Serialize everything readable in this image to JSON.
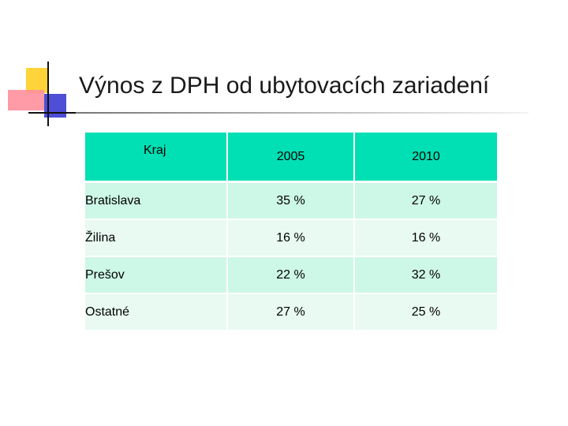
{
  "slide": {
    "title": "Výnos z DPH od ubytovacích zariadení"
  },
  "table": {
    "headers": [
      "Kraj",
      "2005",
      "2010"
    ],
    "rows": [
      {
        "kraj": "Bratislava",
        "y2005": "35 %",
        "y2010": "27 %"
      },
      {
        "kraj": "Žilina",
        "y2005": "16 %",
        "y2010": "16 %"
      },
      {
        "kraj": "Prešov",
        "y2005": "22 %",
        "y2010": "32 %"
      },
      {
        "kraj": "Ostatné",
        "y2005": "27 %",
        "y2010": "25 %"
      }
    ]
  },
  "colors": {
    "header_bg": "#00e0b4",
    "row_odd_bg": "#cdf7e7",
    "row_even_bg": "#e8faf2",
    "logo_yellow": "#ffd43a",
    "logo_red": "#ff8f9d",
    "logo_blue": "#3b3bd2"
  }
}
